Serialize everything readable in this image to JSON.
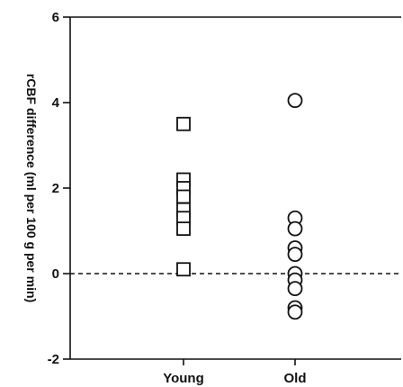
{
  "chart_data": {
    "type": "scatter",
    "categories": [
      "Young",
      "Old"
    ],
    "ylabel": "rCBF difference (ml per 100 g per min)",
    "ylim": [
      -2,
      6
    ],
    "yticks": [
      -2,
      0,
      2,
      4,
      6
    ],
    "reference_line": 0,
    "grid": false,
    "series": [
      {
        "category": "Young",
        "marker": "square",
        "values": [
          3.5,
          2.2,
          2.0,
          1.8,
          1.5,
          1.3,
          1.05,
          0.1
        ]
      },
      {
        "category": "Old",
        "marker": "circle",
        "values": [
          4.05,
          1.3,
          1.05,
          0.6,
          0.45,
          0.0,
          -0.15,
          -0.35,
          -0.8,
          -0.9
        ]
      }
    ]
  }
}
